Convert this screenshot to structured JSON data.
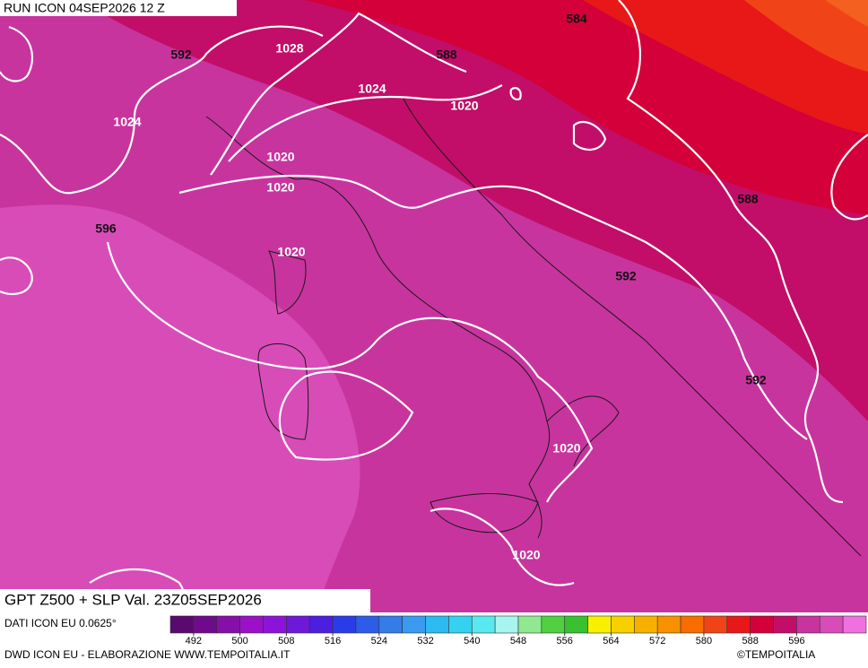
{
  "header": {
    "run": "RUN ICON 04SEP2026 12 Z",
    "title": "GPT Z500 + SLP Val. 23Z05SEP2026"
  },
  "footer": {
    "source": "DATI ICON EU 0.0625°",
    "credit": "DWD ICON EU - ELABORAZIONE WWW.TEMPOITALIA.IT",
    "copyright": "©TEMPOITALIA"
  },
  "map": {
    "contour_labels": [
      "592",
      "1028",
      "588",
      "584",
      "1024",
      "1020",
      "1024",
      "1020",
      "1020",
      "588",
      "596",
      "1020",
      "592",
      "592",
      "1020",
      "1020"
    ]
  },
  "colorbar": {
    "lim": [
      488,
      608
    ],
    "ticks": [
      492,
      500,
      508,
      516,
      524,
      532,
      540,
      548,
      556,
      564,
      572,
      580,
      588,
      596
    ],
    "colors": [
      "#5a0a6e",
      "#700a8c",
      "#8410a8",
      "#9c10c8",
      "#8c14d8",
      "#6e18d8",
      "#4c1ee0",
      "#2a3ce8",
      "#2c5ce8",
      "#347ce8",
      "#3a9af0",
      "#2cbaf0",
      "#34d2f0",
      "#5ae8f0",
      "#a8f4f0",
      "#90e890",
      "#50d040",
      "#38c030",
      "#f8f000",
      "#f8d000",
      "#f8b000",
      "#f89000",
      "#f86c00",
      "#f04418",
      "#e81818",
      "#d4003a",
      "#c20e68",
      "#c8349e",
      "#d84cb8",
      "#f070e0"
    ]
  }
}
